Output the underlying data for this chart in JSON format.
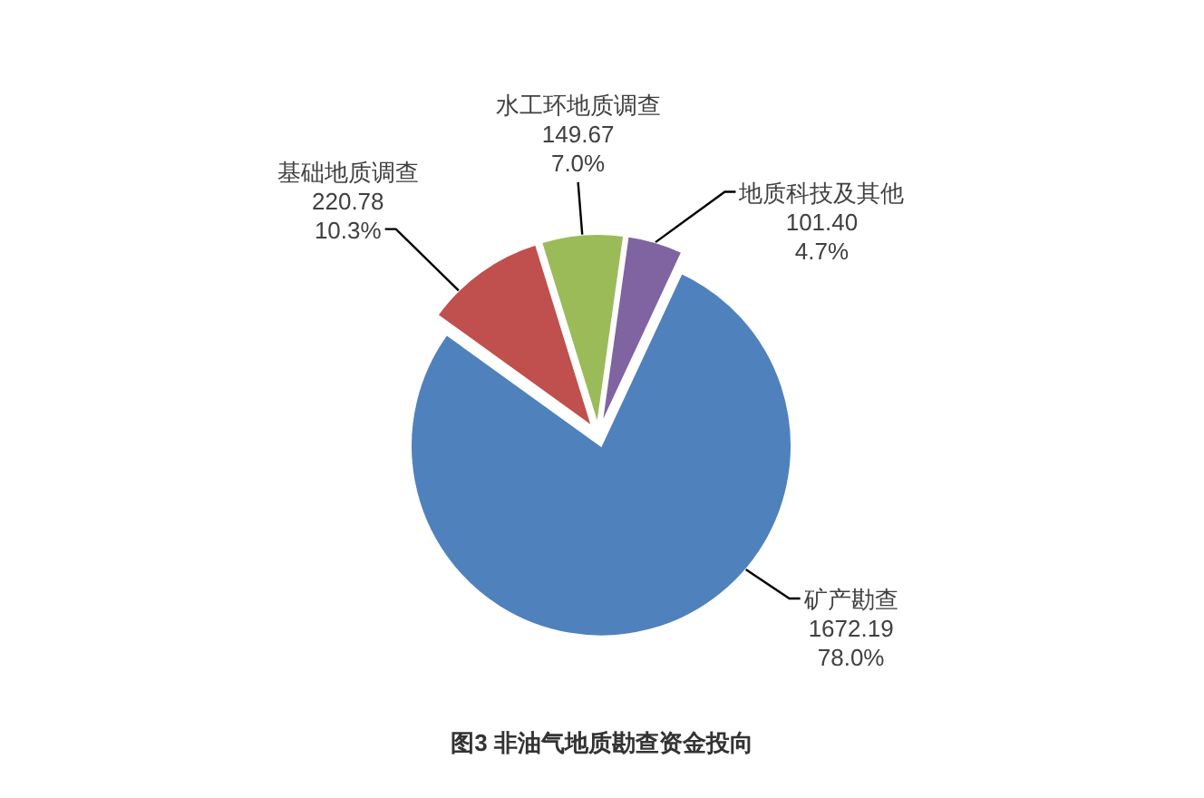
{
  "chart_data": {
    "type": "pie",
    "title": "图3 非油气地质勘查资金投向",
    "categories": [
      "矿产勘查",
      "基础地质调查",
      "水工环地质调查",
      "地质科技及其他"
    ],
    "values": [
      1672.19,
      220.78,
      149.67,
      101.4
    ],
    "value_labels": [
      "1672.19\n78.0%",
      "220.78\n10.3%",
      "149.67\n7.0%",
      "101.40\n4.7%"
    ],
    "colors": [
      "#4f81bd",
      "#c0504d",
      "#9bbb59",
      "#8064a2"
    ]
  }
}
